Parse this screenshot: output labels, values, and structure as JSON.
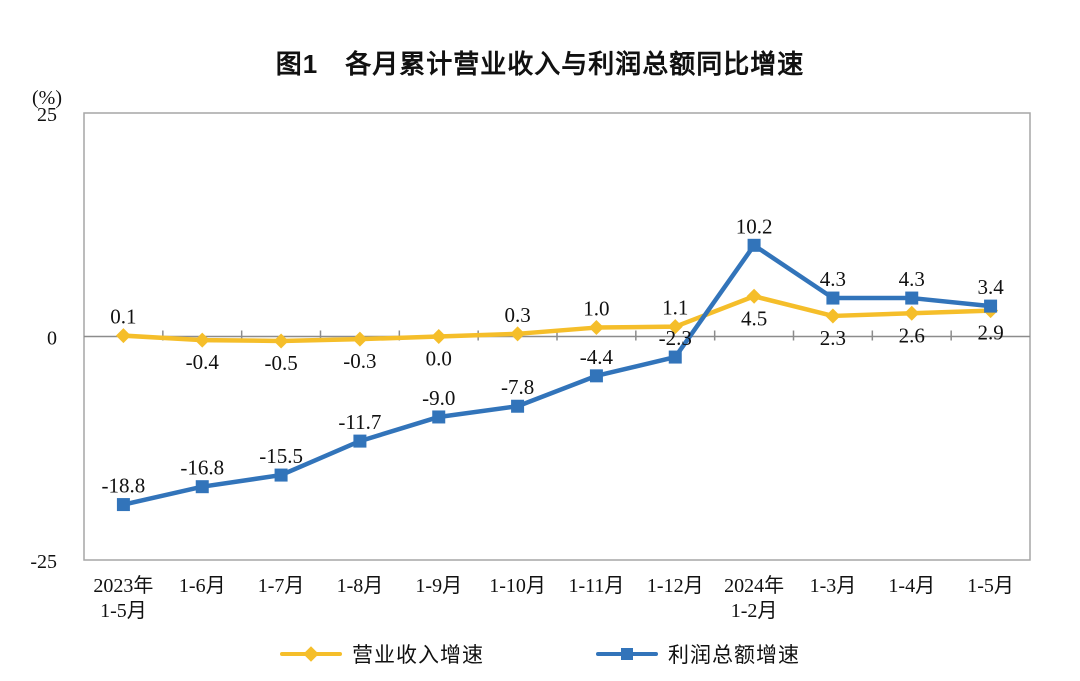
{
  "figure": {
    "title": "图1　各月累计营业收入与利润总额同比增速"
  },
  "chart_data": {
    "type": "line",
    "title": "图1　各月累计营业收入与利润总额同比增速",
    "unit_label": "(%)",
    "categories": [
      "2023年\n1-5月",
      "1-6月",
      "1-7月",
      "1-8月",
      "1-9月",
      "1-10月",
      "1-11月",
      "1-12月",
      "2024年\n1-2月",
      "1-3月",
      "1-4月",
      "1-5月"
    ],
    "y_axis": {
      "min": -25,
      "max": 25,
      "ticks": [
        "25",
        "0",
        "-25"
      ],
      "tick_values": [
        25,
        0,
        -25
      ]
    },
    "grid": false,
    "legend_position": "bottom",
    "series": [
      {
        "name": "营业收入增速",
        "color": "#F5BE2A",
        "marker": "diamond",
        "values": [
          0.1,
          -0.4,
          -0.5,
          -0.3,
          0.0,
          0.3,
          1.0,
          1.1,
          4.5,
          2.3,
          2.6,
          2.9
        ],
        "labels": [
          "0.1",
          "-0.4",
          "-0.5",
          "-0.3",
          "0.0",
          "0.3",
          "1.0",
          "1.1",
          "4.5",
          "2.3",
          "2.6",
          "2.9"
        ],
        "label_pos": [
          "above",
          "below",
          "below",
          "below",
          "below",
          "above",
          "above",
          "above",
          "below",
          "below",
          "below",
          "below"
        ]
      },
      {
        "name": "利润总额增速",
        "color": "#3274BA",
        "marker": "square",
        "values": [
          -18.8,
          -16.8,
          -15.5,
          -11.7,
          -9.0,
          -7.8,
          -4.4,
          -2.3,
          10.2,
          4.3,
          4.3,
          3.4
        ],
        "labels": [
          "-18.8",
          "-16.8",
          "-15.5",
          "-11.7",
          "-9.0",
          "-7.8",
          "-4.4",
          "-2.3",
          "10.2",
          "4.3",
          "4.3",
          "3.4"
        ],
        "label_pos": [
          "above",
          "above",
          "above",
          "above",
          "above",
          "above",
          "above",
          "above",
          "above",
          "above",
          "above",
          "above"
        ]
      }
    ]
  }
}
